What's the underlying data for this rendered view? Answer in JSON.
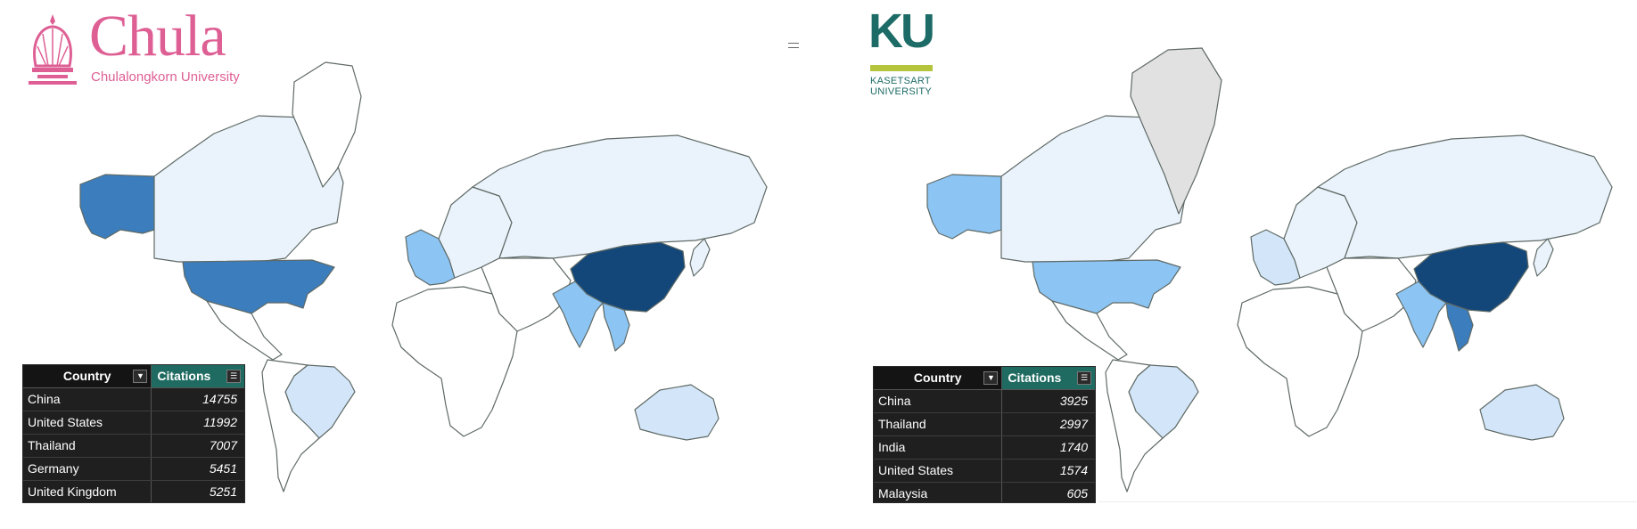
{
  "colors": {
    "c0": "#ffffff",
    "c1": "#eaf3fc",
    "c2": "#d3e6f9",
    "c3": "#8cc4f3",
    "c4": "#3b7dbd",
    "c5": "#13477a",
    "nodata": "#e1e1e1",
    "border": "#5f6a66"
  },
  "panels": [
    {
      "logo": {
        "name": "Chula",
        "subtitle": "Chulalongkorn University"
      },
      "table": {
        "headers": {
          "country": "Country",
          "citations": "Citations"
        },
        "rows": [
          {
            "country": "China",
            "citations": "14755"
          },
          {
            "country": "United States",
            "citations": "11992"
          },
          {
            "country": "Thailand",
            "citations": "7007"
          },
          {
            "country": "Germany",
            "citations": "5451"
          },
          {
            "country": "United Kingdom",
            "citations": "5251"
          }
        ]
      },
      "map": {
        "shading": {
          "china": "c5",
          "usa": "c4",
          "alaska": "c4",
          "canada": "c1",
          "greenland": "c0",
          "europe_west": "c3",
          "europe_east": "c1",
          "russia": "c1",
          "india": "c3",
          "thailand": "c3",
          "brazil": "c2",
          "south_america": "c0",
          "africa": "c0",
          "australia": "c2",
          "middle_east": "c0",
          "japan": "c1"
        }
      }
    },
    {
      "logo": {
        "name": "KU",
        "line1": "KASETSART",
        "line2": "UNIVERSITY"
      },
      "table": {
        "headers": {
          "country": "Country",
          "citations": "Citations"
        },
        "rows": [
          {
            "country": "China",
            "citations": "3925"
          },
          {
            "country": "Thailand",
            "citations": "2997"
          },
          {
            "country": "India",
            "citations": "1740"
          },
          {
            "country": "United States",
            "citations": "1574"
          },
          {
            "country": "Malaysia",
            "citations": "605"
          }
        ]
      },
      "map": {
        "shading": {
          "china": "c5",
          "usa": "c3",
          "alaska": "c3",
          "canada": "c1",
          "greenland": "nodata",
          "europe_west": "c2",
          "europe_east": "c1",
          "russia": "c1",
          "india": "c3",
          "thailand": "c4",
          "brazil": "c2",
          "south_america": "c0",
          "africa": "c0",
          "australia": "c2",
          "middle_east": "c0",
          "japan": "c1"
        }
      }
    }
  ]
}
